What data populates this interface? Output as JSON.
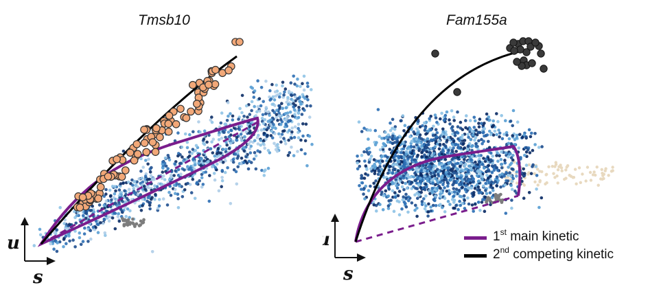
{
  "chart_data": [
    {
      "type": "scatter",
      "title": "Tmsb10",
      "xlabel": "s",
      "ylabel": "u",
      "colors": {
        "cells": [
          "#8fc3e6",
          "#5a9fd4",
          "#2d6fb4",
          "#1f4f8f",
          "#0c2d66",
          "#aecde8"
        ],
        "highlight": "#f2a878",
        "highlight_edge": "#333333",
        "main_kinetic": "#7a1d8c",
        "competing_kinetic": "#000000",
        "gray_cells": "#7d7d7d"
      }
    },
    {
      "type": "scatter",
      "title": "Fam155a",
      "xlabel": "s",
      "ylabel": "u",
      "colors": {
        "cells": [
          "#0c2d66",
          "#1f4f8f",
          "#2d6fb4",
          "#5a9fd4",
          "#8fc3e6",
          "#e8d9bf"
        ],
        "highlight": "#3a3a3a",
        "highlight_edge": "#111111",
        "main_kinetic": "#7a1d8c",
        "competing_kinetic": "#000000",
        "gray_cells": "#7d7d7d"
      }
    }
  ],
  "legend": [
    {
      "label": "main kinetic",
      "sup": "st",
      "prefix": "1",
      "color": "#7a1d8c"
    },
    {
      "label": "competing kinetic",
      "sup": "nd",
      "prefix": "2",
      "color": "#000000"
    }
  ]
}
